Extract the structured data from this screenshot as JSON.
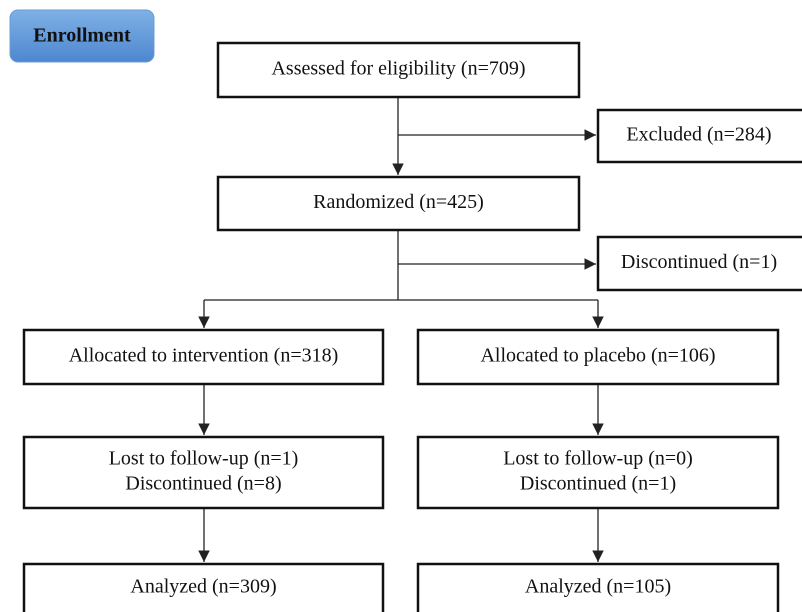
{
  "stage": "Enrollment",
  "nodes": [
    {
      "lines": [
        "Assessed for eligibility (n=709)"
      ]
    },
    {
      "lines": [
        "Excluded (n=284)"
      ]
    },
    {
      "lines": [
        "Randomized (n=425)"
      ]
    },
    {
      "lines": [
        "Discontinued (n=1)"
      ]
    },
    {
      "lines": [
        "Allocated to intervention (n=318)"
      ]
    },
    {
      "lines": [
        "Allocated to placebo (n=106)"
      ]
    },
    {
      "lines": [
        "Lost to follow-up (n=1)",
        "Discontinued (n=8)"
      ]
    },
    {
      "lines": [
        "Lost to follow-up (n=0)",
        "Discontinued (n=1)"
      ]
    },
    {
      "lines": [
        "Analyzed (n=309)"
      ]
    },
    {
      "lines": [
        "Analyzed (n=105)"
      ]
    }
  ]
}
